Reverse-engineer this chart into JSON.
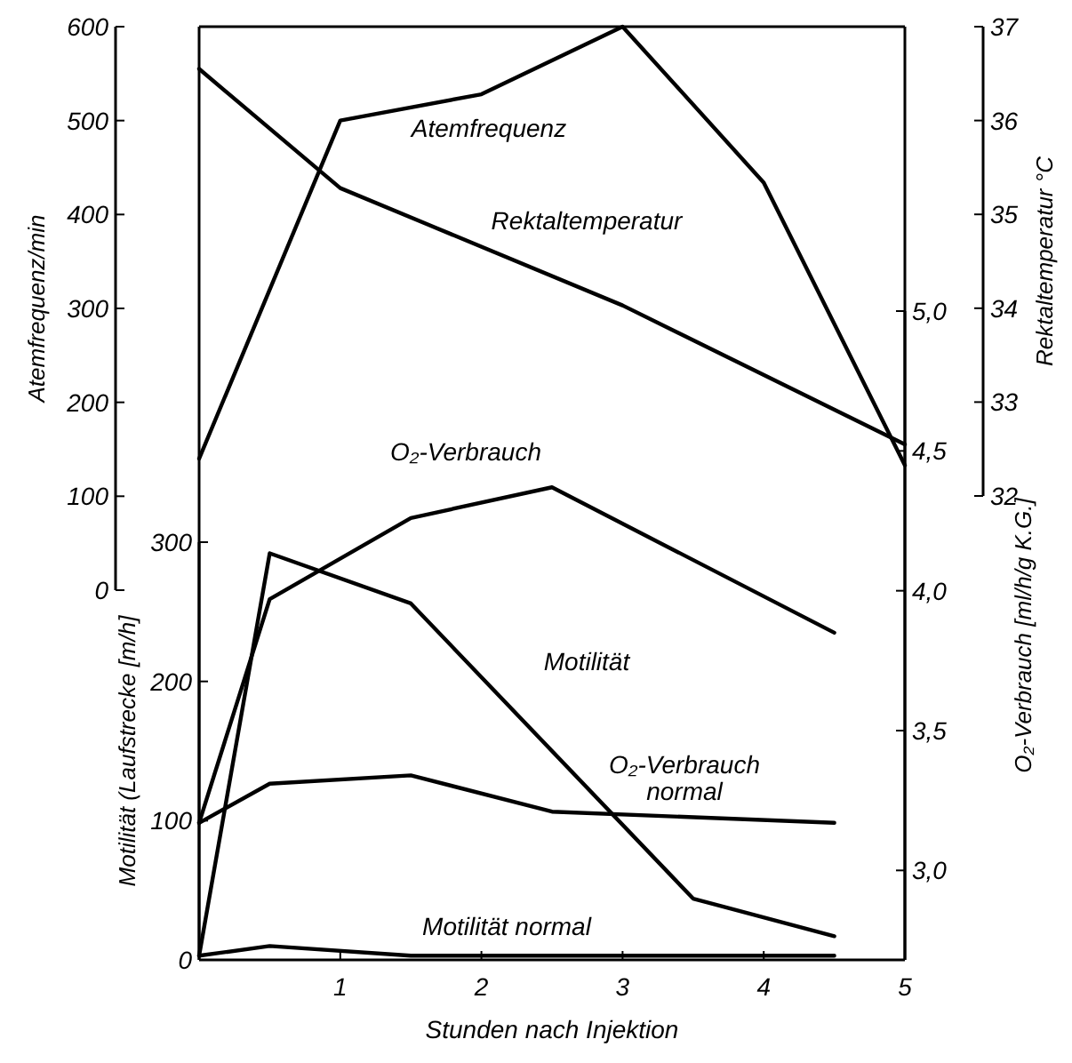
{
  "chart_data": [
    {
      "type": "line",
      "ylabel": "Atemfrequenz/min",
      "y2label": "Rektaltemperatur °C",
      "tick_labels": "y",
      "xlim": [
        0,
        5
      ],
      "ylim": [
        0,
        600
      ],
      "yticks": [
        0,
        100,
        200,
        300,
        400,
        500,
        600
      ],
      "y2lim": [
        32,
        37
      ],
      "y2ticks": [
        32,
        33,
        34,
        35,
        36,
        37
      ],
      "series": [
        {
          "name": "Atemfrequenz",
          "color": "#000000",
          "x": [
            0,
            1,
            2,
            3,
            4,
            5
          ],
          "values": [
            140,
            500,
            528,
            600,
            434,
            133
          ]
        },
        {
          "name": "Rektaltemperatur",
          "color": "#000000",
          "axis": "y2",
          "x": [
            0,
            1,
            3,
            5
          ],
          "values": [
            36.55,
            35.28,
            34.03,
            32.55
          ]
        }
      ]
    },
    {
      "type": "line",
      "xlabel": "Stunden nach Injektion",
      "ylabel": "Motilität (Laufstrecke [m/h]",
      "y2label": "O₂-Verbrauch [ml/h/g K.G.]",
      "xlim": [
        0,
        5
      ],
      "xticks": [
        1,
        2,
        3,
        4,
        5
      ],
      "ylim": [
        0,
        300
      ],
      "yticks": [
        0,
        100,
        200,
        300
      ],
      "y2lim": [
        2.68,
        5.0
      ],
      "y2ticks": [
        {
          "value": 3.0,
          "label": "3,0"
        },
        {
          "value": 3.5,
          "label": "3,5"
        },
        {
          "value": 4.0,
          "label": "4,0"
        },
        {
          "value": 4.5,
          "label": "4,5"
        },
        {
          "value": 5.0,
          "label": "5,0"
        }
      ],
      "series": [
        {
          "name": "O₂-Verbrauch",
          "color": "#000000",
          "axis": "y2",
          "x": [
            0,
            0.5,
            1.5,
            2.5,
            4.5
          ],
          "values": [
            3.17,
            3.97,
            4.26,
            4.37,
            3.85
          ]
        },
        {
          "name": "Motilität",
          "color": "#000000",
          "x": [
            0,
            0.5,
            1.5,
            3.5,
            4.5
          ],
          "values": [
            3,
            292,
            256,
            44,
            17
          ]
        },
        {
          "name": "O₂-Verbrauch normal",
          "color": "#000000",
          "axis": "y2",
          "x": [
            0,
            0.5,
            1.5,
            2.5,
            4.5
          ],
          "values": [
            3.17,
            3.31,
            3.34,
            3.21,
            3.17
          ]
        },
        {
          "name": "Motilität normal",
          "color": "#000000",
          "x": [
            0,
            0.5,
            1.5,
            4.5
          ],
          "values": [
            3,
            10,
            3,
            3
          ]
        }
      ]
    }
  ]
}
